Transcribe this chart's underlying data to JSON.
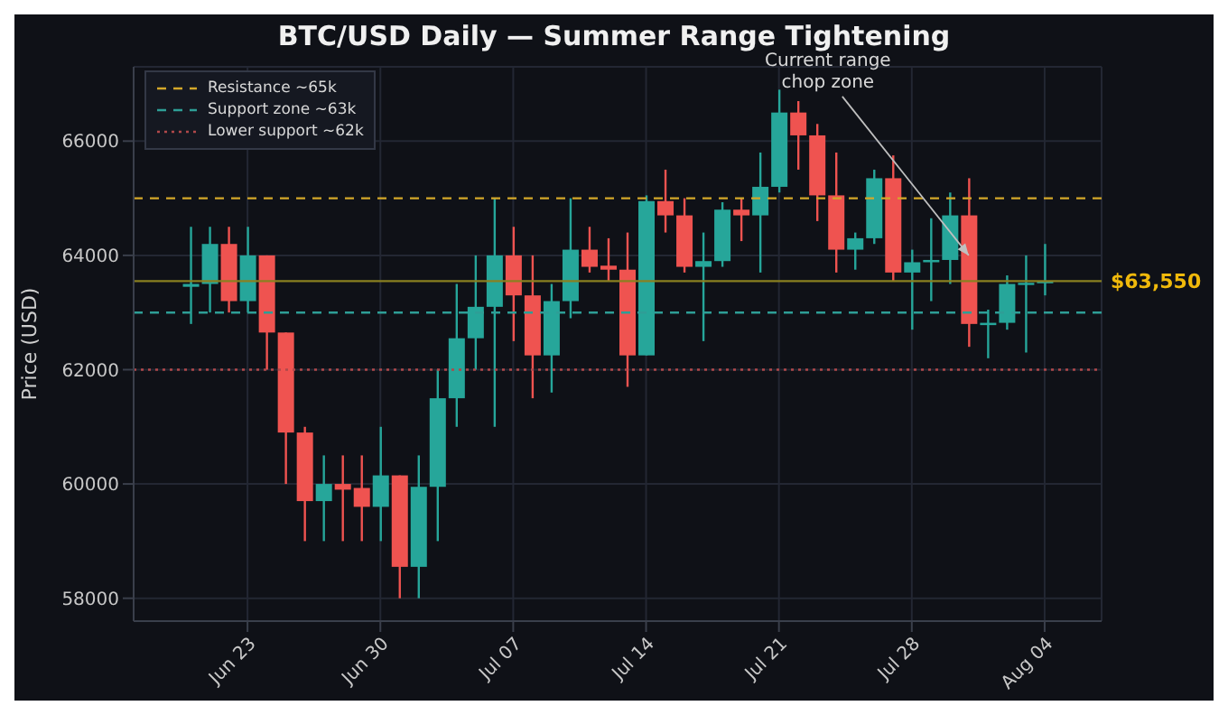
{
  "chart_data": {
    "type": "candlestick",
    "title": "BTC/USD Daily — Summer Range Tightening",
    "ylabel": "Price (USD)",
    "x": [
      "--06-20",
      "--06-21",
      "--06-22",
      "--06-23",
      "--06-24",
      "--06-25",
      "--06-26",
      "--06-27",
      "--06-28",
      "--06-29",
      "--06-30",
      "--07-01",
      "--07-02",
      "--07-03",
      "--07-04",
      "--07-05",
      "--07-06",
      "--07-07",
      "--07-08",
      "--07-09",
      "--07-10",
      "--07-11",
      "--07-12",
      "--07-13",
      "--07-14",
      "--07-15",
      "--07-16",
      "--07-17",
      "--07-18",
      "--07-19",
      "--07-20",
      "--07-21",
      "--07-22",
      "--07-23",
      "--07-24",
      "--07-25",
      "--07-26",
      "--07-27",
      "--07-28",
      "--07-29",
      "--07-30",
      "--07-31",
      "--08-01",
      "--08-02",
      "--08-03",
      "--08-04"
    ],
    "ohlc": [
      [
        63450,
        64500,
        62800,
        63500
      ],
      [
        63500,
        64500,
        63000,
        64200
      ],
      [
        64200,
        64500,
        63000,
        63200
      ],
      [
        63200,
        64500,
        63000,
        64000
      ],
      [
        64000,
        64000,
        62000,
        62650
      ],
      [
        62650,
        62650,
        60000,
        60900
      ],
      [
        60900,
        61000,
        59000,
        59700
      ],
      [
        59700,
        60500,
        59000,
        60000
      ],
      [
        60000,
        60500,
        59000,
        59900
      ],
      [
        59930,
        60500,
        59000,
        59600
      ],
      [
        59600,
        61000,
        59000,
        60150
      ],
      [
        60150,
        60150,
        58000,
        58550
      ],
      [
        58550,
        60500,
        58000,
        59950
      ],
      [
        59950,
        62000,
        59000,
        61500
      ],
      [
        61500,
        63500,
        61000,
        62550
      ],
      [
        62550,
        64000,
        62000,
        63100
      ],
      [
        63100,
        65000,
        61000,
        64000
      ],
      [
        64000,
        64500,
        62500,
        63300
      ],
      [
        63300,
        64000,
        61500,
        62250
      ],
      [
        62250,
        63500,
        61600,
        63200
      ],
      [
        63200,
        65000,
        62900,
        64100
      ],
      [
        64100,
        64500,
        63700,
        63800
      ],
      [
        63820,
        64300,
        63550,
        63750
      ],
      [
        63750,
        64400,
        61700,
        62250
      ],
      [
        62250,
        65050,
        62250,
        64950
      ],
      [
        64950,
        65500,
        64400,
        64700
      ],
      [
        64700,
        65000,
        63700,
        63800
      ],
      [
        63800,
        64400,
        62500,
        63900
      ],
      [
        63900,
        64930,
        63800,
        64800
      ],
      [
        64800,
        65000,
        64250,
        64700
      ],
      [
        64700,
        65800,
        63700,
        65200
      ],
      [
        65200,
        66900,
        65100,
        66500
      ],
      [
        66500,
        66700,
        65500,
        66100
      ],
      [
        66100,
        66300,
        64600,
        65050
      ],
      [
        65050,
        65800,
        63700,
        64100
      ],
      [
        64100,
        64400,
        63750,
        64300
      ],
      [
        64300,
        65500,
        64200,
        65350
      ],
      [
        65350,
        65750,
        63550,
        63700
      ],
      [
        63700,
        64100,
        62700,
        63880
      ],
      [
        63880,
        64650,
        63200,
        63920
      ],
      [
        63920,
        65100,
        63500,
        64700
      ],
      [
        64700,
        65350,
        62400,
        62800
      ],
      [
        62780,
        63050,
        62200,
        62820
      ],
      [
        62820,
        63650,
        62700,
        63500
      ],
      [
        63500,
        64000,
        62300,
        63520
      ],
      [
        63520,
        64200,
        63300,
        63550
      ]
    ],
    "colors": [
      "#26a69a",
      "#26a69a",
      "#ef5350",
      "#26a69a",
      "#ef5350",
      "#ef5350",
      "#ef5350",
      "#26a69a",
      "#ef5350",
      "#ef5350",
      "#26a69a",
      "#ef5350",
      "#26a69a",
      "#26a69a",
      "#26a69a",
      "#26a69a",
      "#26a69a",
      "#ef5350",
      "#ef5350",
      "#26a69a",
      "#26a69a",
      "#ef5350",
      "#ef5350",
      "#ef5350",
      "#26a69a",
      "#ef5350",
      "#ef5350",
      "#26a69a",
      "#26a69a",
      "#ef5350",
      "#26a69a",
      "#26a69a",
      "#ef5350",
      "#ef5350",
      "#ef5350",
      "#26a69a",
      "#26a69a",
      "#ef5350",
      "#26a69a",
      "#26a69a",
      "#26a69a",
      "#ef5350",
      "#26a69a",
      "#26a69a",
      "#26a69a",
      "#26a69a"
    ],
    "xlim": [
      "--06-17",
      "--08-07"
    ],
    "xticks": [
      {
        "value": "--06-23",
        "label": "Jun 23"
      },
      {
        "value": "--06-30",
        "label": "Jun 30"
      },
      {
        "value": "--07-07",
        "label": "Jul 07"
      },
      {
        "value": "--07-14",
        "label": "Jul 14"
      },
      {
        "value": "--07-21",
        "label": "Jul 21"
      },
      {
        "value": "--07-28",
        "label": "Jul 28"
      },
      {
        "value": "--08-04",
        "label": "Aug 04"
      }
    ],
    "ylim": [
      57600,
      67300
    ],
    "yticks": [
      58000,
      60000,
      62000,
      64000,
      66000
    ],
    "ref_lines": [
      {
        "axis": "y",
        "value": 65000,
        "label": "Resistance ~65k",
        "color": "#d4a82a",
        "line_style": "dashed"
      },
      {
        "axis": "y",
        "value": 63000,
        "label": "Support zone ~63k",
        "color": "#2e9e96",
        "line_style": "dashed"
      },
      {
        "axis": "y",
        "value": 62000,
        "label": "Lower support ~62k",
        "color": "#b0484a",
        "line_style": "dotted"
      },
      {
        "axis": "y",
        "value": 63550,
        "label": "$63,550",
        "color": "#8a8020",
        "line_style": "solid"
      }
    ],
    "annotations": [
      {
        "text": "Current range\nchop zone",
        "x": "--07-31",
        "y": 64000
      }
    ],
    "grid": true,
    "legend": "top left"
  }
}
